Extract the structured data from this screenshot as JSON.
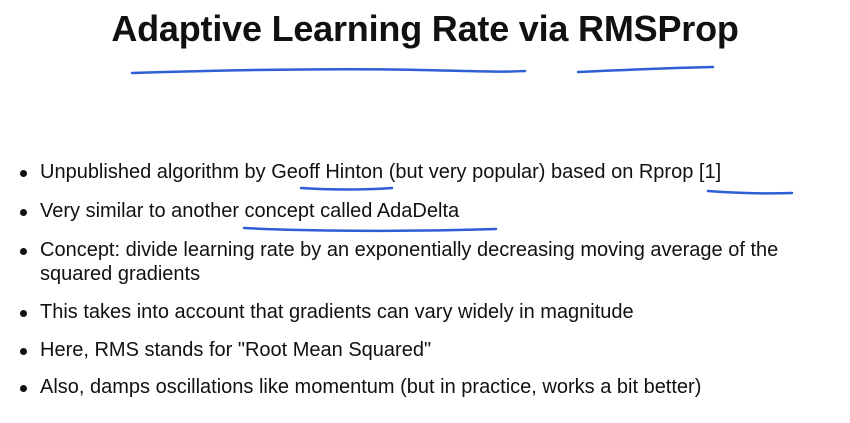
{
  "slide": {
    "title": "Adaptive Learning Rate via RMSProp",
    "bullets": [
      "Unpublished algorithm by Geoff Hinton (but very popular) based on Rprop [1]",
      "Very similar to another concept called AdaDelta",
      "Concept: divide learning rate by an exponentially decreasing moving average of the squared gradients",
      "This takes into account that gradients can vary widely in magnitude",
      "Here, RMS stands for \"Root Mean Squared\"",
      "Also, damps oscillations like momentum (but in practice, works a bit better)"
    ]
  },
  "colors": {
    "text": "#111111",
    "annotation": "#2f5fd6",
    "background": "#ffffff"
  }
}
